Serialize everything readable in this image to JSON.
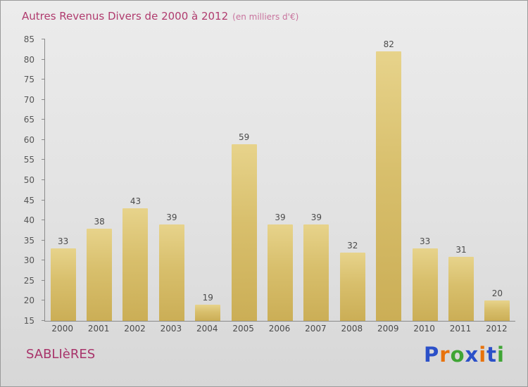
{
  "title": {
    "text": "Autres Revenus Divers de 2000 à 2012",
    "subtitle": "(en milliers d'€)"
  },
  "footer": {
    "brand": "SABLIèRES",
    "logo_letters": [
      {
        "char": "P",
        "color": "#2b50c8"
      },
      {
        "char": "r",
        "color": "#e8720c"
      },
      {
        "char": "o",
        "color": "#3fa535"
      },
      {
        "char": "x",
        "color": "#2b50c8"
      },
      {
        "char": "i",
        "color": "#e8720c"
      },
      {
        "char": "t",
        "color": "#2b50c8"
      },
      {
        "char": "i",
        "color": "#3fa535"
      }
    ]
  },
  "chart_data": {
    "type": "bar",
    "title": "Autres Revenus Divers de 2000 à 2012",
    "subtitle": "(en milliers d'€)",
    "categories": [
      "2000",
      "2001",
      "2002",
      "2003",
      "2004",
      "2005",
      "2006",
      "2007",
      "2008",
      "2009",
      "2010",
      "2011",
      "2012"
    ],
    "values": [
      33,
      38,
      43,
      39,
      19,
      59,
      39,
      39,
      32,
      82,
      33,
      31,
      20
    ],
    "xlabel": "",
    "ylabel": "",
    "ylim": [
      15,
      85
    ],
    "ytick_step": 5,
    "grid": false,
    "legend": "none",
    "bar_color_top": "#e7d38b",
    "bar_color_bottom": "#cbae56"
  }
}
